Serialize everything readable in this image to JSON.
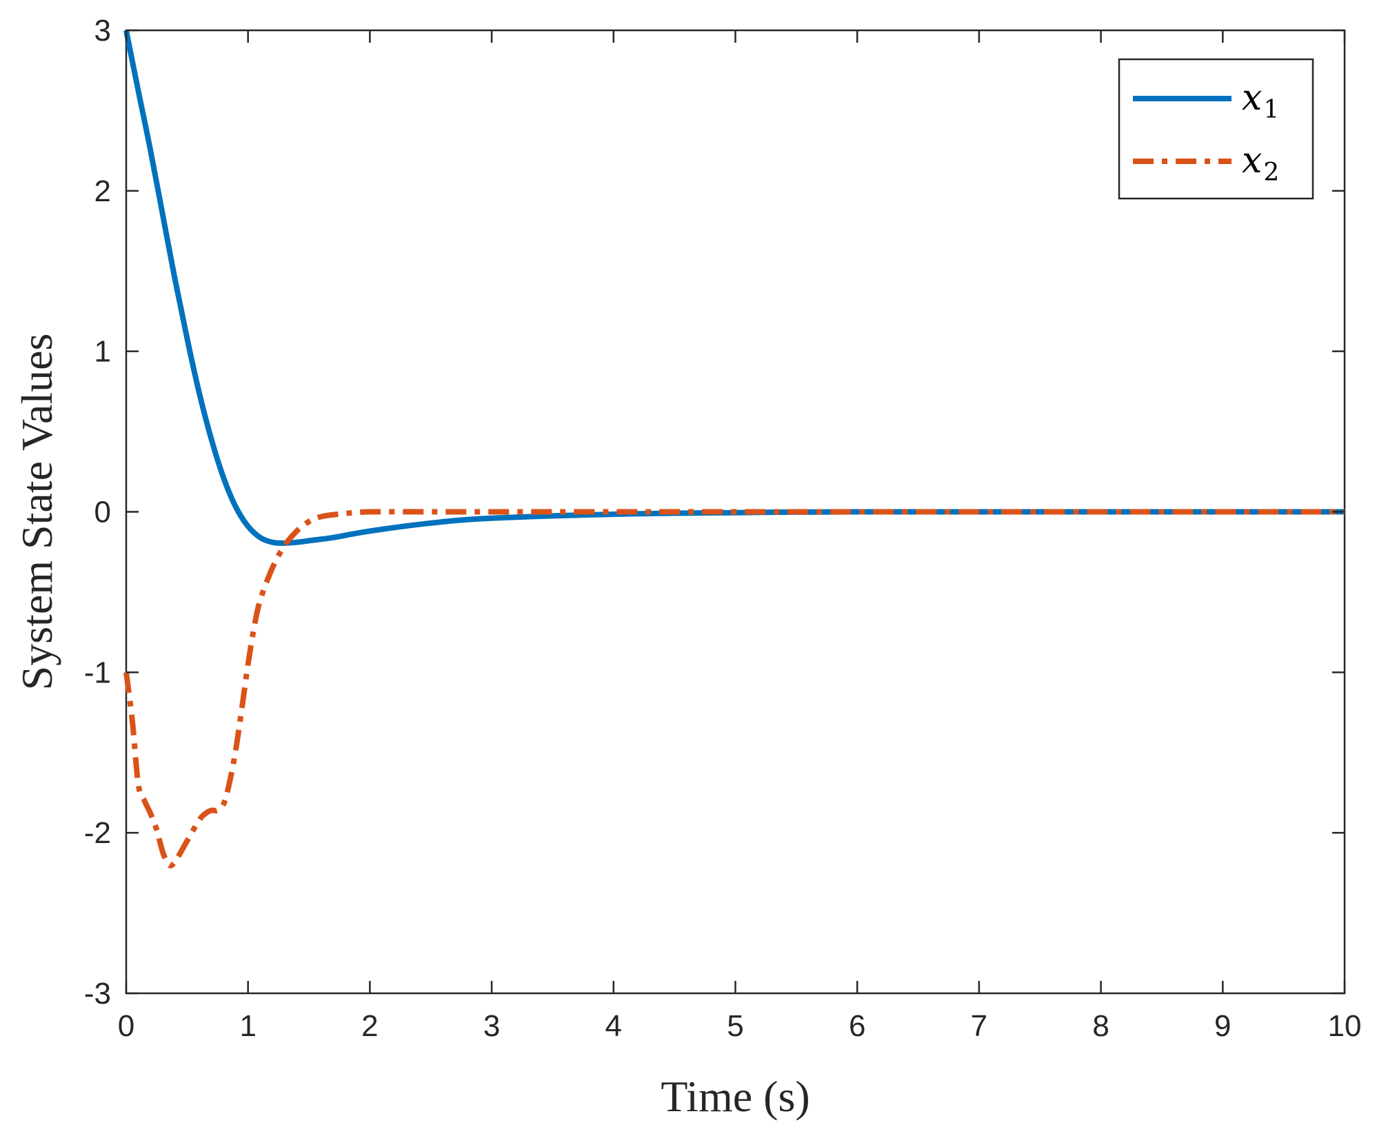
{
  "chart_data": {
    "type": "line",
    "xlabel": "Time (s)",
    "ylabel": "System State Values",
    "xlim": [
      0,
      10
    ],
    "ylim": [
      -3,
      3
    ],
    "xticks": [
      0,
      1,
      2,
      3,
      4,
      5,
      6,
      7,
      8,
      9,
      10
    ],
    "yticks": [
      -3,
      -2,
      -1,
      0,
      1,
      2,
      3
    ],
    "grid": false,
    "legend_position": "top-right",
    "series": [
      {
        "name": "x",
        "subscript": "1",
        "color": "#0072BD",
        "style": "solid",
        "x": [
          0,
          0.1,
          0.2,
          0.3,
          0.4,
          0.5,
          0.6,
          0.7,
          0.8,
          0.9,
          1.0,
          1.1,
          1.2,
          1.3,
          1.4,
          1.5,
          1.7,
          2.0,
          2.5,
          3.0,
          4.0,
          5.0,
          6.0,
          8.0,
          10.0
        ],
        "y": [
          3.0,
          2.62,
          2.25,
          1.85,
          1.45,
          1.08,
          0.74,
          0.45,
          0.21,
          0.03,
          -0.09,
          -0.16,
          -0.19,
          -0.195,
          -0.19,
          -0.18,
          -0.16,
          -0.12,
          -0.07,
          -0.04,
          -0.015,
          -0.005,
          0,
          0,
          0
        ]
      },
      {
        "name": "x",
        "subscript": "2",
        "color": "#D95319",
        "style": "dashdot",
        "x": [
          0,
          0.05,
          0.1,
          0.15,
          0.2,
          0.25,
          0.3,
          0.35,
          0.4,
          0.5,
          0.6,
          0.65,
          0.7,
          0.75,
          0.8,
          0.85,
          0.9,
          0.95,
          1.0,
          1.05,
          1.1,
          1.2,
          1.3,
          1.4,
          1.5,
          1.6,
          1.8,
          2.0,
          2.5,
          3.0,
          4.0,
          5.0,
          10.0
        ],
        "y": [
          -1.0,
          -1.3,
          -1.7,
          -1.8,
          -1.88,
          -1.98,
          -2.12,
          -2.2,
          -2.18,
          -2.05,
          -1.92,
          -1.88,
          -1.86,
          -1.86,
          -1.82,
          -1.68,
          -1.48,
          -1.22,
          -0.95,
          -0.72,
          -0.55,
          -0.35,
          -0.21,
          -0.12,
          -0.06,
          -0.03,
          -0.01,
          0,
          0,
          0,
          0,
          0,
          0
        ]
      }
    ]
  }
}
